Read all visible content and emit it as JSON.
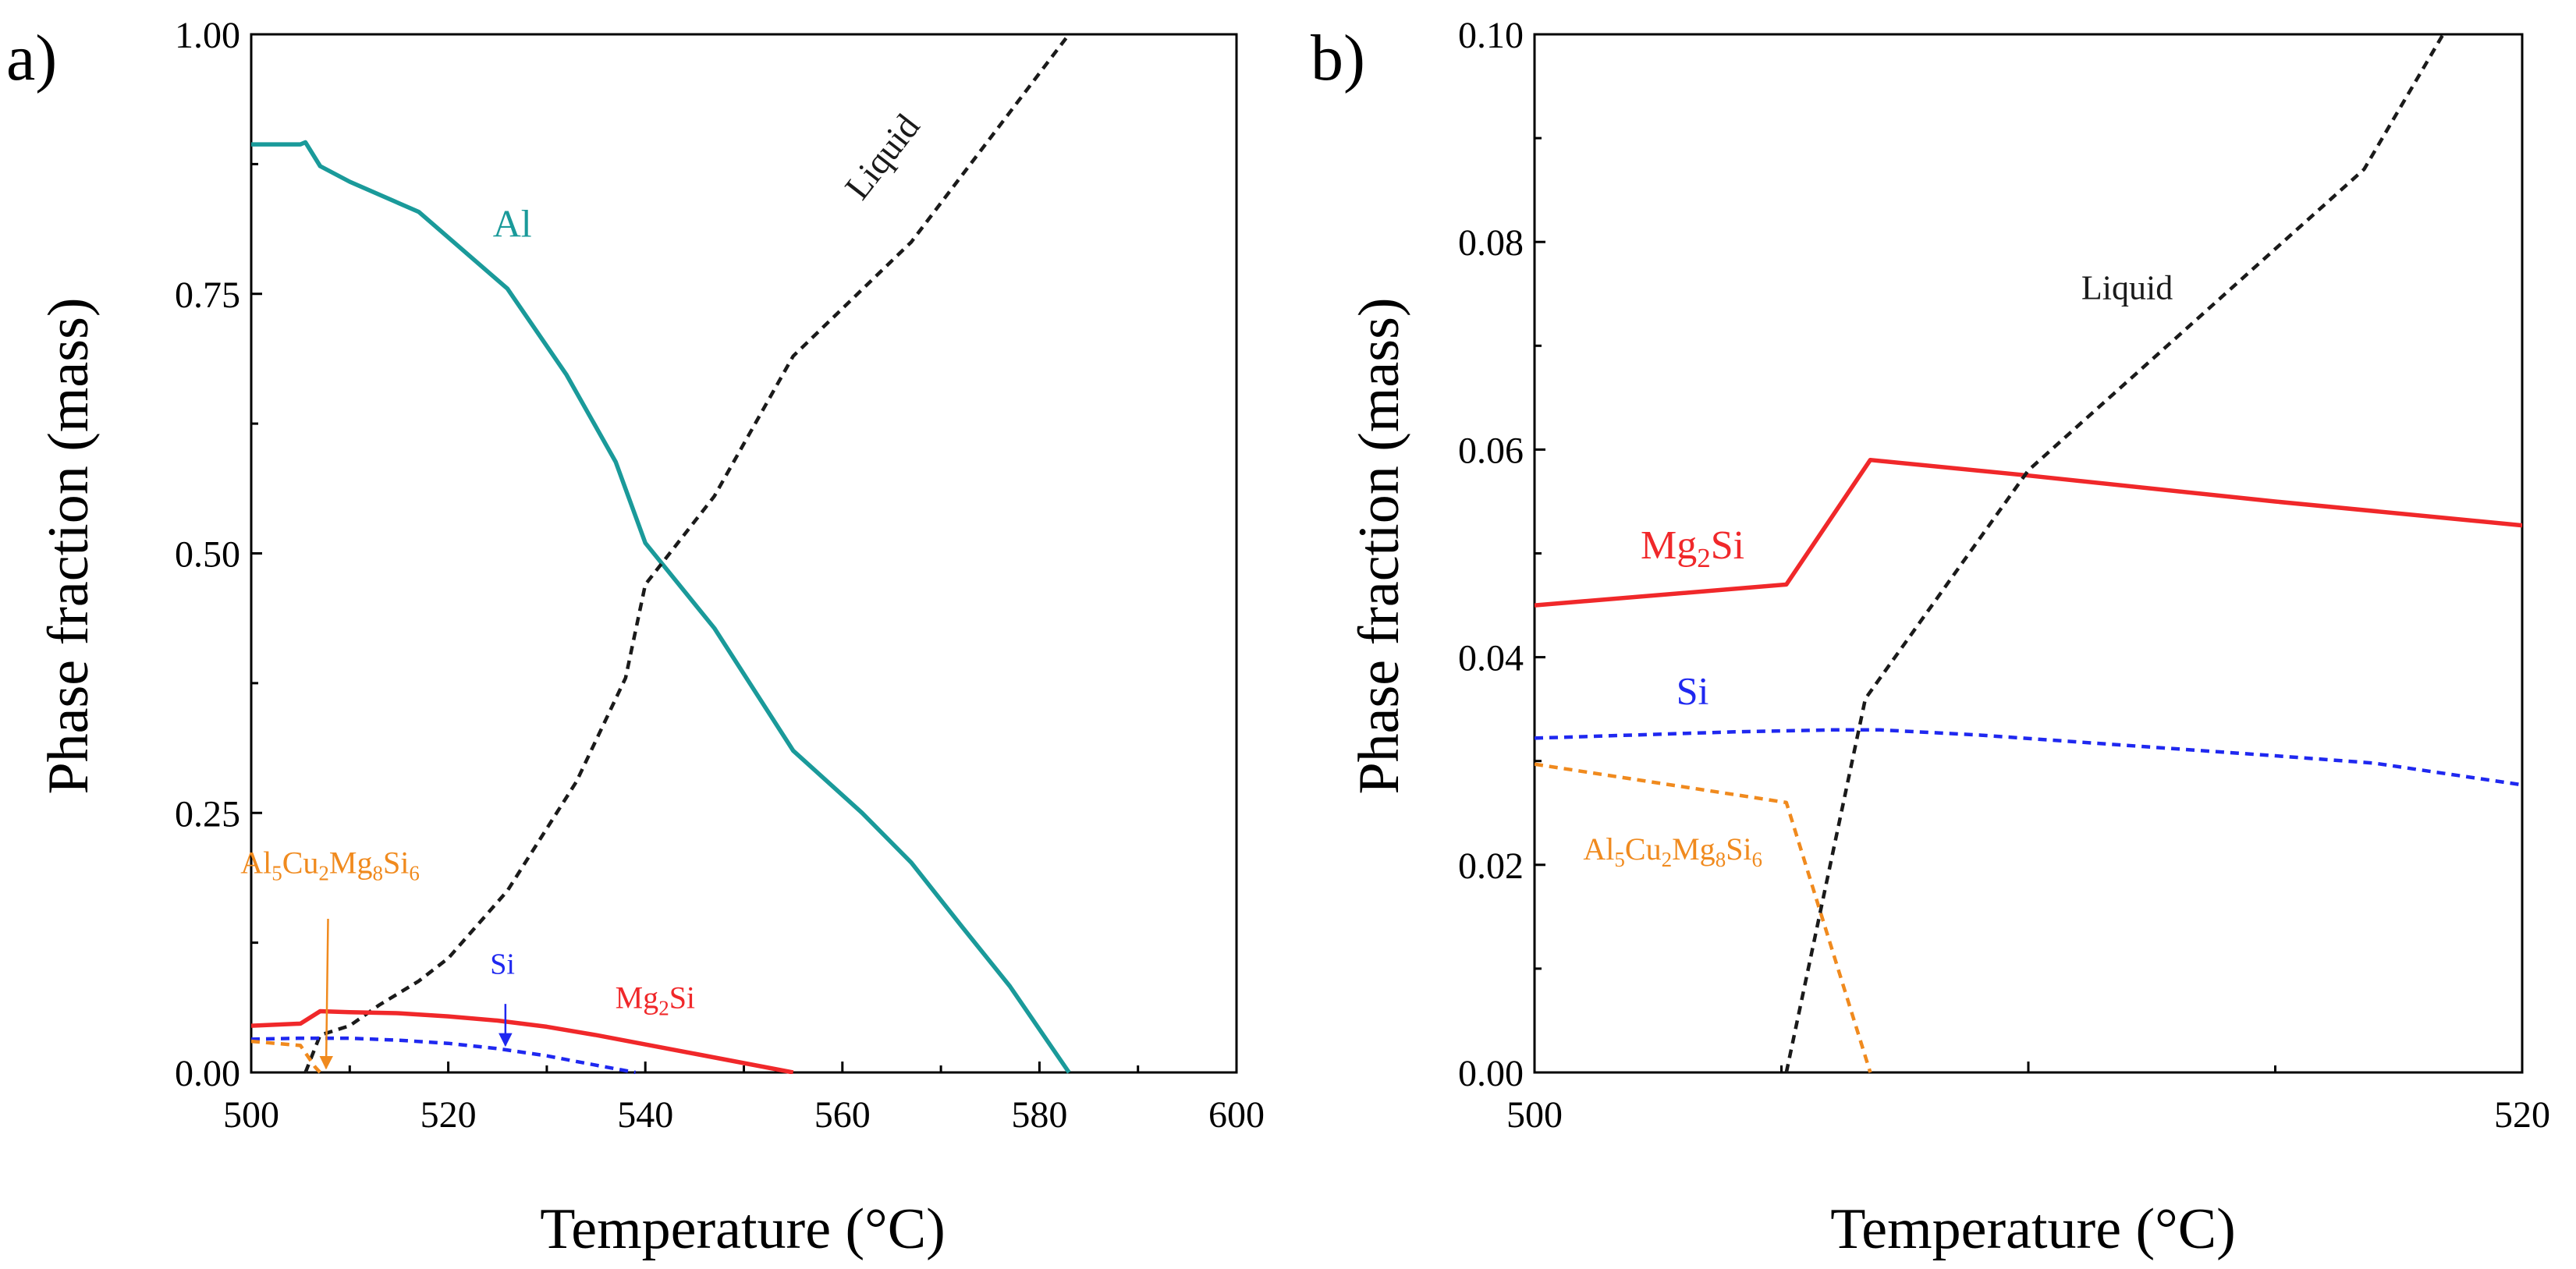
{
  "colors": {
    "al": "#1a9a9a",
    "liquid": "#1a1a1a",
    "mg2si": "#f0282a",
    "si": "#1f28f0",
    "al5": "#f08a1e",
    "axis": "#000000"
  },
  "chart_data": [
    {
      "panel_label": "a)",
      "type": "line",
      "title": "",
      "xlabel": "Temperature (°C)",
      "ylabel": "Phase fraction (mass)",
      "xlim": [
        500,
        600
      ],
      "ylim": [
        0,
        1
      ],
      "xticks": [
        500,
        520,
        540,
        560,
        580,
        600
      ],
      "xtick_labels": [
        "500",
        "520",
        "540",
        "560",
        "580",
        "600"
      ],
      "yticks": [
        0,
        0.25,
        0.5,
        0.75,
        1.0
      ],
      "ytick_labels": [
        "0.00",
        "0.25",
        "0.50",
        "0.75",
        "1.00"
      ],
      "series": [
        {
          "name": "Al",
          "color_key": "al",
          "dash": false,
          "x": [
            500,
            505,
            505.5,
            507,
            510,
            517,
            526,
            532,
            537,
            540,
            547,
            555,
            562,
            567,
            572,
            577,
            583
          ],
          "y": [
            0.894,
            0.894,
            0.896,
            0.873,
            0.858,
            0.829,
            0.755,
            0.672,
            0.588,
            0.51,
            0.428,
            0.31,
            0.25,
            0.202,
            0.142,
            0.083,
            0.0
          ]
        },
        {
          "name": "Liquid",
          "color_key": "liquid",
          "dash": true,
          "x": [
            505.5,
            507,
            510,
            513,
            517,
            520,
            526,
            533,
            538,
            540,
            547,
            555,
            567,
            583
          ],
          "y": [
            0.0,
            0.036,
            0.045,
            0.065,
            0.088,
            0.11,
            0.175,
            0.28,
            0.38,
            0.47,
            0.555,
            0.69,
            0.8,
            1.0
          ]
        },
        {
          "name": "Mg2Si",
          "color_key": "mg2si",
          "dash": false,
          "x": [
            500,
            505,
            507,
            510,
            515,
            520,
            525,
            530,
            535,
            540,
            545,
            550,
            555
          ],
          "y": [
            0.045,
            0.047,
            0.059,
            0.058,
            0.057,
            0.054,
            0.05,
            0.044,
            0.036,
            0.027,
            0.018,
            0.009,
            0.0
          ]
        },
        {
          "name": "Si",
          "color_key": "si",
          "dash": true,
          "x": [
            500,
            505,
            510,
            515,
            520,
            525,
            530,
            535,
            539
          ],
          "y": [
            0.032,
            0.033,
            0.033,
            0.031,
            0.028,
            0.023,
            0.016,
            0.007,
            0.0
          ]
        },
        {
          "name": "Al5Cu2Mg8Si6",
          "color_key": "al5",
          "dash": true,
          "x": [
            500,
            505,
            506.5,
            507
          ],
          "y": [
            0.03,
            0.026,
            0.005,
            0.0
          ]
        }
      ],
      "annotations": [
        {
          "text": "Al",
          "parts": [
            [
              "Al",
              false
            ]
          ],
          "color_key": "al",
          "x": 526.5,
          "y": 0.805,
          "size": 50,
          "rotate": 0,
          "anchor": "middle"
        },
        {
          "text": "Liquid",
          "parts": [
            [
              "Liquid",
              false
            ]
          ],
          "color_key": "liquid",
          "x": 565,
          "y": 0.875,
          "size": 46,
          "rotate": -52,
          "anchor": "middle"
        },
        {
          "text": "Al5Cu2Mg8Si6",
          "parts": [
            [
              "Al",
              false
            ],
            [
              "5",
              true
            ],
            [
              "Cu",
              false
            ],
            [
              "2",
              true
            ],
            [
              "Mg",
              false
            ],
            [
              "8",
              true
            ],
            [
              "Si",
              false
            ],
            [
              "6",
              true
            ]
          ],
          "color_key": "al5",
          "x": 508,
          "y": 0.192,
          "size": 40,
          "rotate": 0,
          "anchor": "middle"
        },
        {
          "text": "Si",
          "parts": [
            [
              "Si",
              false
            ]
          ],
          "color_key": "si",
          "x": 525.5,
          "y": 0.095,
          "size": 38,
          "rotate": 0,
          "anchor": "middle"
        },
        {
          "text": "Mg2Si",
          "parts": [
            [
              "Mg",
              false
            ],
            [
              "2",
              true
            ],
            [
              "Si",
              false
            ]
          ],
          "color_key": "mg2si",
          "x": 541,
          "y": 0.062,
          "size": 40,
          "rotate": 0,
          "anchor": "middle"
        }
      ],
      "arrows": [
        {
          "color_key": "al5",
          "x1": 507.8,
          "y1": 0.148,
          "x2": 507.6,
          "y2": 0.004
        },
        {
          "color_key": "si",
          "x1": 525.8,
          "y1": 0.066,
          "x2": 525.8,
          "y2": 0.026
        }
      ]
    },
    {
      "panel_label": "b)",
      "type": "line",
      "title": "",
      "xlabel": "Temperature (°C)",
      "ylabel": "Phase fraction (mass)",
      "xlim": [
        500,
        520
      ],
      "ylim": [
        0,
        0.1
      ],
      "xticks": [
        500,
        510,
        520
      ],
      "xtick_labels": [
        "500",
        "",
        "520"
      ],
      "minor_xticks": [
        505,
        515
      ],
      "yticks": [
        0,
        0.02,
        0.04,
        0.06,
        0.08,
        0.1
      ],
      "ytick_labels": [
        "0.00",
        "0.02",
        "0.04",
        "0.06",
        "0.08",
        "0.10"
      ],
      "series": [
        {
          "name": "Mg2Si",
          "color_key": "mg2si",
          "dash": false,
          "x": [
            500,
            505.1,
            506.8,
            510,
            515,
            520
          ],
          "y": [
            0.045,
            0.047,
            0.059,
            0.0575,
            0.055,
            0.0527
          ]
        },
        {
          "name": "Si",
          "color_key": "si",
          "dash": true,
          "x": [
            500,
            502,
            504,
            506,
            507,
            509,
            512,
            515,
            517,
            520
          ],
          "y": [
            0.0322,
            0.0325,
            0.0328,
            0.033,
            0.033,
            0.0325,
            0.0315,
            0.0305,
            0.0298,
            0.0277
          ]
        },
        {
          "name": "Al5Cu2Mg8Si6",
          "color_key": "al5",
          "dash": true,
          "x": [
            500,
            505.1,
            506.8
          ],
          "y": [
            0.0297,
            0.026,
            0.0
          ]
        },
        {
          "name": "Liquid",
          "color_key": "liquid",
          "dash": true,
          "x": [
            505.1,
            506.7,
            510,
            516.8,
            518.4
          ],
          "y": [
            0.0,
            0.036,
            0.058,
            0.087,
            0.1
          ]
        }
      ],
      "annotations": [
        {
          "text": "Liquid",
          "parts": [
            [
              "Liquid",
              false
            ]
          ],
          "color_key": "liquid",
          "x": 512,
          "y": 0.0745,
          "size": 44,
          "rotate": 0,
          "anchor": "middle"
        },
        {
          "text": "Mg2Si",
          "parts": [
            [
              "Mg",
              false
            ],
            [
              "2",
              true
            ],
            [
              "Si",
              false
            ]
          ],
          "color_key": "mg2si",
          "x": 503.2,
          "y": 0.0495,
          "size": 52,
          "rotate": 0,
          "anchor": "middle"
        },
        {
          "text": "Si",
          "parts": [
            [
              "Si",
              false
            ]
          ],
          "color_key": "si",
          "x": 503.2,
          "y": 0.0355,
          "size": 50,
          "rotate": 0,
          "anchor": "middle"
        },
        {
          "text": "Al5Cu2Mg8Si6",
          "parts": [
            [
              "Al",
              false
            ],
            [
              "5",
              true
            ],
            [
              "Cu",
              false
            ],
            [
              "2",
              true
            ],
            [
              "Mg",
              false
            ],
            [
              "8",
              true
            ],
            [
              "Si",
              false
            ],
            [
              "6",
              true
            ]
          ],
          "color_key": "al5",
          "x": 502.8,
          "y": 0.0205,
          "size": 40,
          "rotate": 0,
          "anchor": "middle"
        }
      ],
      "arrows": []
    }
  ]
}
